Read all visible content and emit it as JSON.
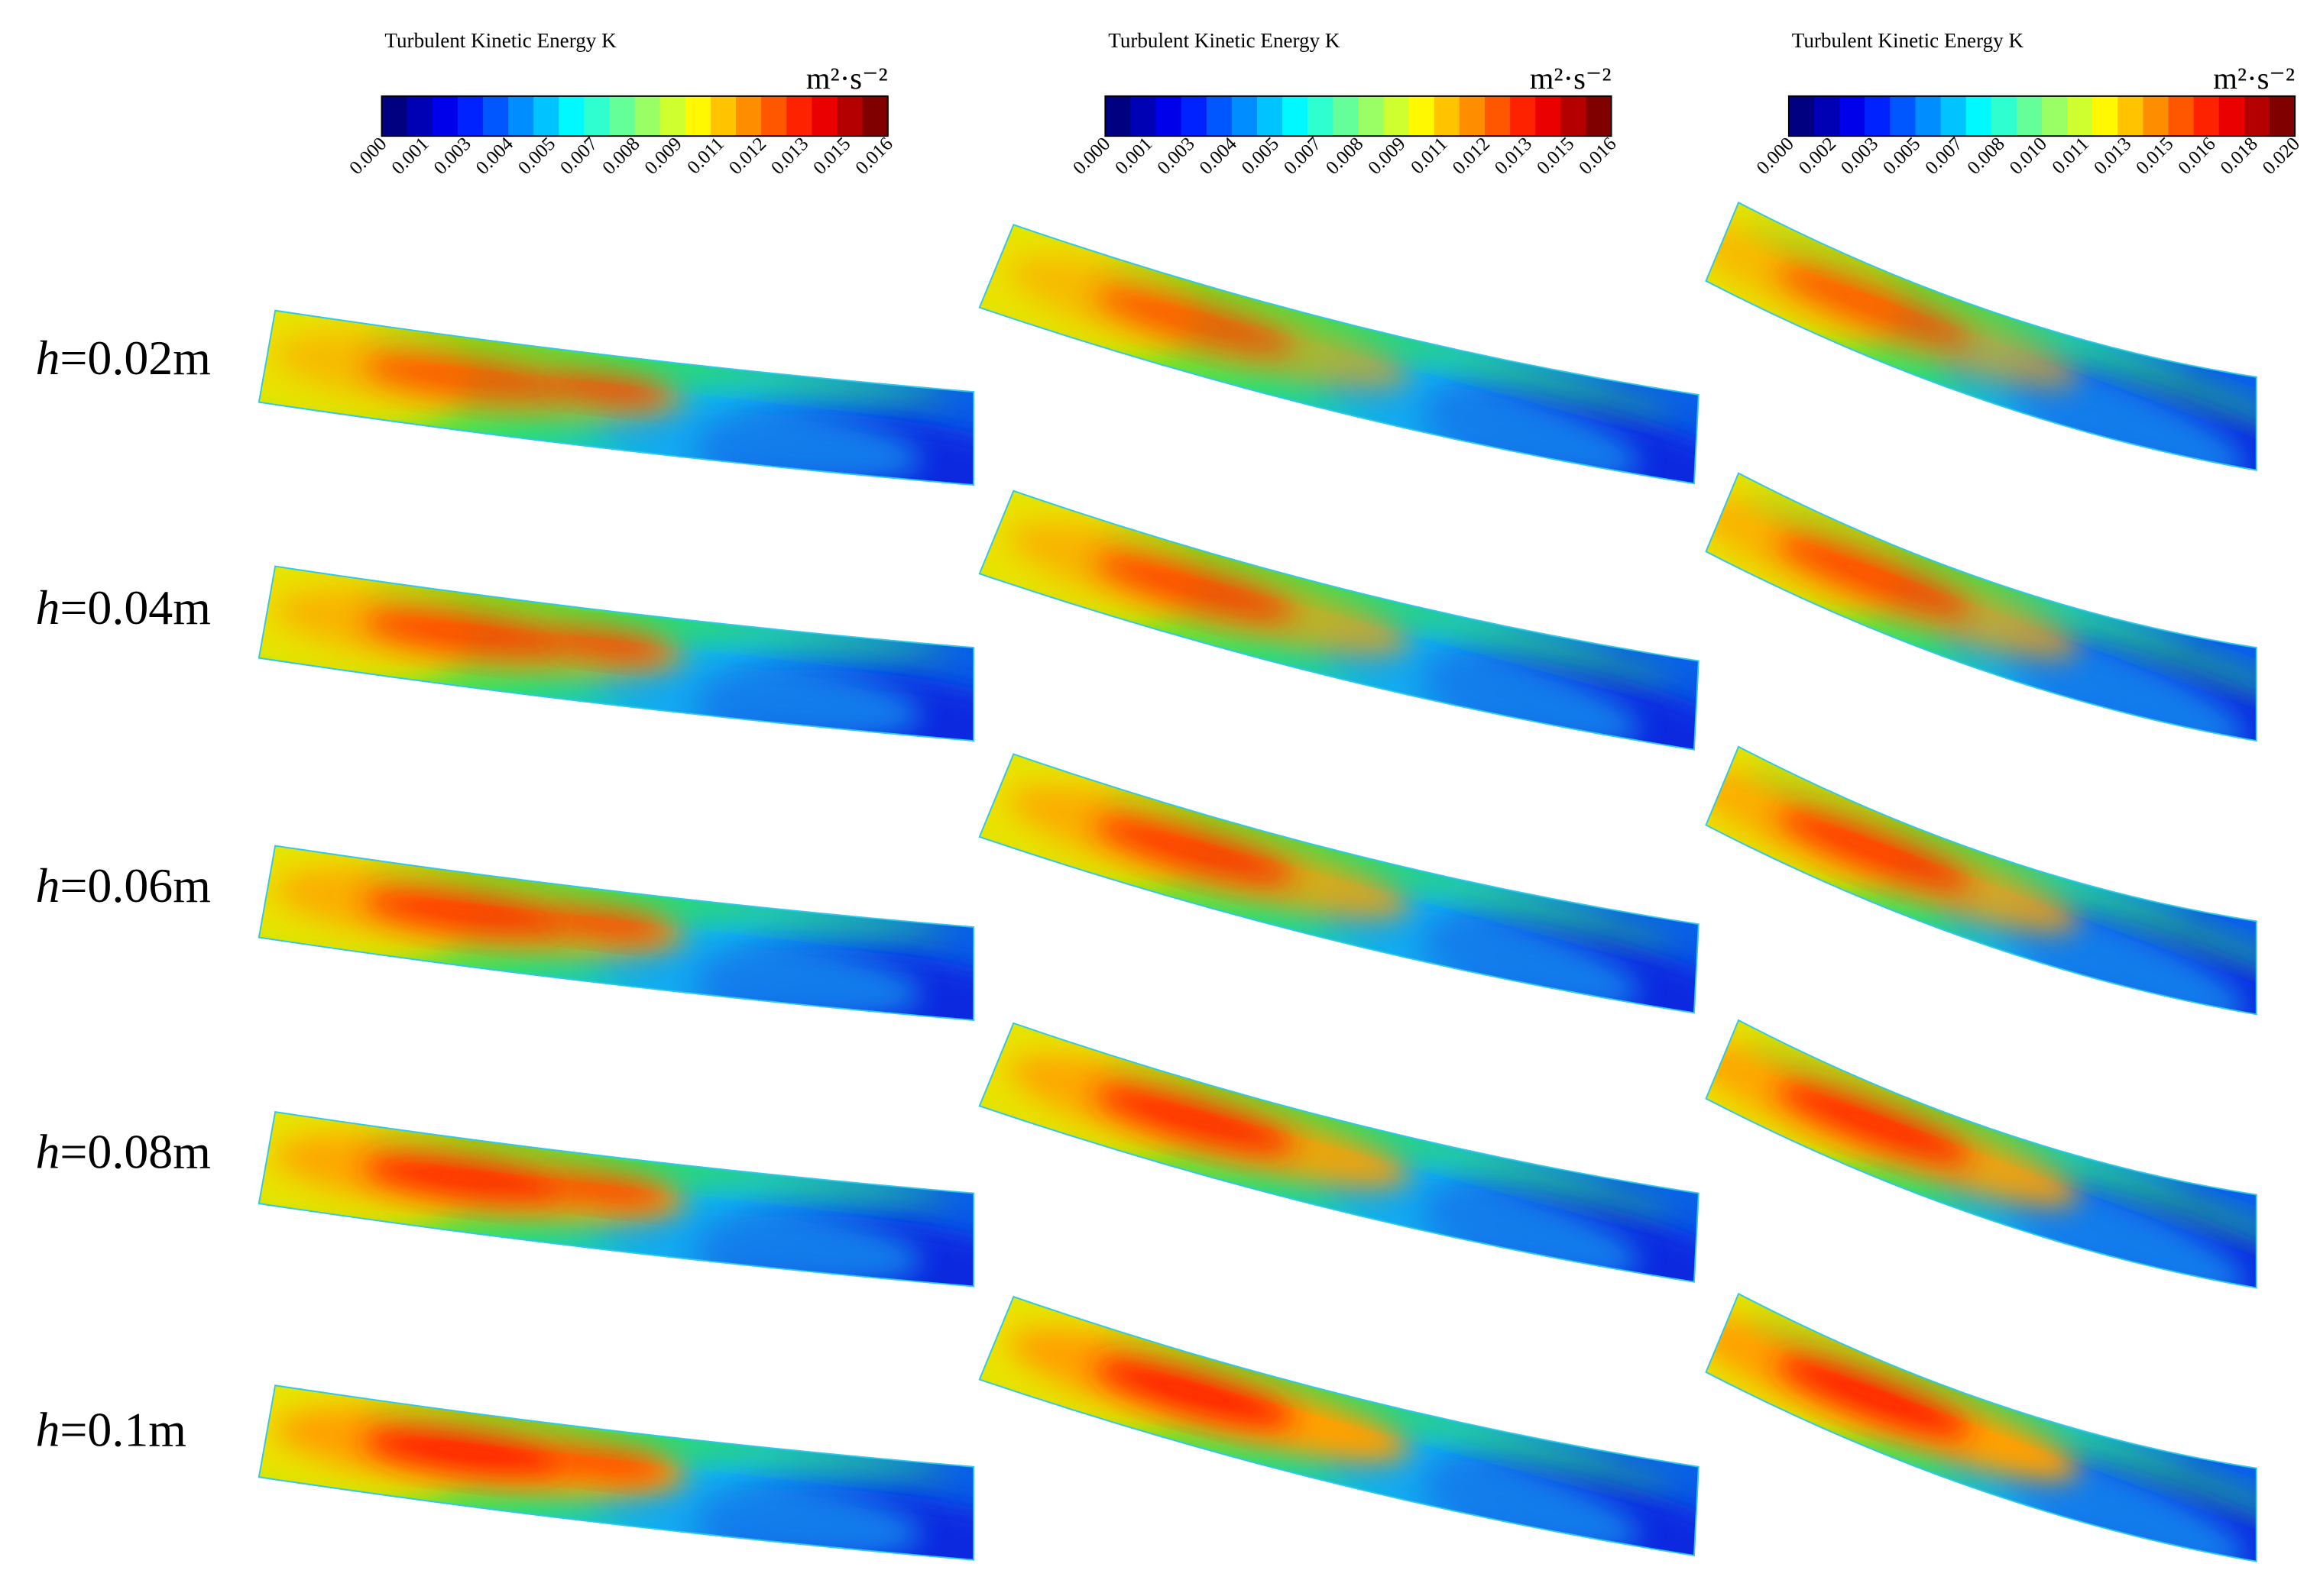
{
  "colorbars": [
    {
      "title": "Turbulent Kinetic Energy K",
      "unit": "m²·s⁻²",
      "ticks": [
        "0.000",
        "0.001",
        "0.003",
        "0.004",
        "0.005",
        "0.007",
        "0.008",
        "0.009",
        "0.011",
        "0.012",
        "0.013",
        "0.015",
        "0.016"
      ]
    },
    {
      "title": "Turbulent Kinetic Energy K",
      "unit": "m²·s⁻²",
      "ticks": [
        "0.000",
        "0.001",
        "0.003",
        "0.004",
        "0.005",
        "0.007",
        "0.008",
        "0.009",
        "0.011",
        "0.012",
        "0.013",
        "0.015",
        "0.016"
      ]
    },
    {
      "title": "Turbulent Kinetic Energy K",
      "unit": "m²·s⁻²",
      "ticks": [
        "0.000",
        "0.002",
        "0.003",
        "0.005",
        "0.007",
        "0.008",
        "0.010",
        "0.011",
        "0.013",
        "0.015",
        "0.016",
        "0.018",
        "0.020"
      ]
    }
  ],
  "row_labels": [
    {
      "symbol": "h",
      "text": "=0.02m"
    },
    {
      "symbol": "h",
      "text": "=0.04m"
    },
    {
      "symbol": "h",
      "text": "=0.06m"
    },
    {
      "symbol": "h",
      "text": "=0.08m"
    },
    {
      "symbol": "h",
      "text": "=0.1m"
    }
  ]
}
